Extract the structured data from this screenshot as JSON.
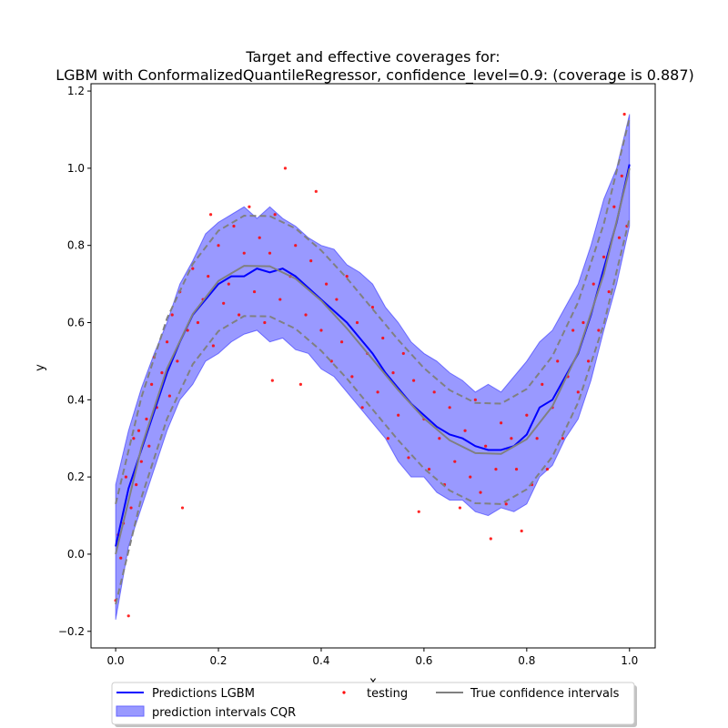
{
  "chart_data": {
    "type": "line",
    "title": "Target and effective coverages for:",
    "subtitle": "LGBM with ConformalizedQuantileRegressor, confidence_level=0.9: (coverage is 0.887)",
    "xlabel": "x",
    "ylabel": "y",
    "xlim": [
      -0.048,
      1.05
    ],
    "ylim": [
      -0.243,
      1.219
    ],
    "xticks": [
      "0.0",
      "0.2",
      "0.4",
      "0.6",
      "0.8",
      "1.0"
    ],
    "yticks": [
      "−0.2",
      "0.0",
      "0.2",
      "0.4",
      "0.6",
      "0.8",
      "1.0",
      "1.2"
    ],
    "grid": false,
    "legend_position": "bottom-center",
    "legend": [
      {
        "label": "Predictions LGBM",
        "kind": "line",
        "color": "#0000ff"
      },
      {
        "label": "prediction intervals CQR",
        "kind": "patch",
        "color": "#9999ff"
      },
      {
        "label": "testing",
        "kind": "marker",
        "color": "#ff0000"
      },
      {
        "label": "True confidence intervals",
        "kind": "line",
        "color": "#808080"
      }
    ],
    "x": [
      0,
      0.025,
      0.05,
      0.075,
      0.1,
      0.125,
      0.15,
      0.175,
      0.2,
      0.225,
      0.25,
      0.275,
      0.3,
      0.325,
      0.35,
      0.375,
      0.4,
      0.425,
      0.45,
      0.475,
      0.5,
      0.525,
      0.55,
      0.575,
      0.6,
      0.625,
      0.65,
      0.675,
      0.7,
      0.725,
      0.75,
      0.775,
      0.8,
      0.825,
      0.85,
      0.875,
      0.9,
      0.925,
      0.95,
      0.975,
      1.0
    ],
    "predictions": [
      0.02,
      0.17,
      0.27,
      0.37,
      0.47,
      0.55,
      0.62,
      0.66,
      0.7,
      0.72,
      0.72,
      0.74,
      0.73,
      0.74,
      0.72,
      0.69,
      0.66,
      0.63,
      0.6,
      0.56,
      0.52,
      0.47,
      0.43,
      0.39,
      0.36,
      0.33,
      0.31,
      0.3,
      0.28,
      0.27,
      0.27,
      0.28,
      0.31,
      0.38,
      0.4,
      0.46,
      0.52,
      0.62,
      0.74,
      0.86,
      1.01
    ],
    "interval_lower": [
      -0.17,
      0.02,
      0.12,
      0.22,
      0.32,
      0.4,
      0.44,
      0.5,
      0.52,
      0.55,
      0.57,
      0.58,
      0.55,
      0.56,
      0.53,
      0.52,
      0.48,
      0.46,
      0.42,
      0.38,
      0.34,
      0.3,
      0.24,
      0.2,
      0.2,
      0.16,
      0.14,
      0.14,
      0.11,
      0.1,
      0.12,
      0.11,
      0.13,
      0.2,
      0.23,
      0.3,
      0.35,
      0.45,
      0.58,
      0.7,
      0.85
    ],
    "interval_upper": [
      0.18,
      0.32,
      0.43,
      0.52,
      0.6,
      0.7,
      0.76,
      0.83,
      0.86,
      0.88,
      0.9,
      0.87,
      0.9,
      0.87,
      0.85,
      0.82,
      0.8,
      0.79,
      0.75,
      0.73,
      0.7,
      0.64,
      0.6,
      0.55,
      0.52,
      0.5,
      0.47,
      0.45,
      0.42,
      0.44,
      0.42,
      0.46,
      0.5,
      0.55,
      0.58,
      0.64,
      0.7,
      0.8,
      0.92,
      1.0,
      1.14
    ],
    "true_x": [
      0,
      0.05,
      0.1,
      0.15,
      0.2,
      0.25,
      0.3,
      0.35,
      0.4,
      0.45,
      0.5,
      0.55,
      0.6,
      0.65,
      0.7,
      0.75,
      0.8,
      0.85,
      0.9,
      0.95,
      1.0
    ],
    "true_mean": [
      0,
      0.276,
      0.481,
      0.622,
      0.708,
      0.747,
      0.746,
      0.714,
      0.657,
      0.585,
      0.505,
      0.425,
      0.352,
      0.295,
      0.262,
      0.26,
      0.298,
      0.383,
      0.523,
      0.726,
      1.0
    ],
    "true_lower": [
      -0.13,
      0.146,
      0.351,
      0.492,
      0.578,
      0.617,
      0.616,
      0.584,
      0.527,
      0.455,
      0.375,
      0.295,
      0.222,
      0.165,
      0.132,
      0.13,
      0.168,
      0.253,
      0.393,
      0.596,
      0.87
    ],
    "true_upper": [
      0.13,
      0.406,
      0.611,
      0.752,
      0.838,
      0.877,
      0.876,
      0.844,
      0.787,
      0.715,
      0.635,
      0.555,
      0.482,
      0.425,
      0.392,
      0.39,
      0.428,
      0.513,
      0.653,
      0.856,
      1.13
    ],
    "testing": [
      [
        0.0,
        -0.12
      ],
      [
        0.005,
        0.05
      ],
      [
        0.01,
        -0.01
      ],
      [
        0.015,
        0.08
      ],
      [
        0.02,
        0.2
      ],
      [
        0.025,
        -0.16
      ],
      [
        0.03,
        0.12
      ],
      [
        0.035,
        0.3
      ],
      [
        0.04,
        0.18
      ],
      [
        0.045,
        0.32
      ],
      [
        0.05,
        0.24
      ],
      [
        0.06,
        0.35
      ],
      [
        0.065,
        0.28
      ],
      [
        0.07,
        0.44
      ],
      [
        0.075,
        0.51
      ],
      [
        0.08,
        0.38
      ],
      [
        0.09,
        0.47
      ],
      [
        0.1,
        0.55
      ],
      [
        0.105,
        0.41
      ],
      [
        0.11,
        0.62
      ],
      [
        0.12,
        0.5
      ],
      [
        0.125,
        0.68
      ],
      [
        0.13,
        0.12
      ],
      [
        0.14,
        0.58
      ],
      [
        0.15,
        0.74
      ],
      [
        0.16,
        0.6
      ],
      [
        0.17,
        0.66
      ],
      [
        0.18,
        0.72
      ],
      [
        0.185,
        0.88
      ],
      [
        0.19,
        0.54
      ],
      [
        0.2,
        0.8
      ],
      [
        0.21,
        0.65
      ],
      [
        0.22,
        0.7
      ],
      [
        0.23,
        0.85
      ],
      [
        0.24,
        0.62
      ],
      [
        0.25,
        0.78
      ],
      [
        0.26,
        0.9
      ],
      [
        0.27,
        0.68
      ],
      [
        0.28,
        0.82
      ],
      [
        0.29,
        0.6
      ],
      [
        0.3,
        0.78
      ],
      [
        0.305,
        0.45
      ],
      [
        0.31,
        0.88
      ],
      [
        0.32,
        0.66
      ],
      [
        0.33,
        1.0
      ],
      [
        0.34,
        0.72
      ],
      [
        0.35,
        0.8
      ],
      [
        0.36,
        0.44
      ],
      [
        0.37,
        0.62
      ],
      [
        0.38,
        0.76
      ],
      [
        0.39,
        0.94
      ],
      [
        0.4,
        0.58
      ],
      [
        0.41,
        0.7
      ],
      [
        0.42,
        0.5
      ],
      [
        0.43,
        0.66
      ],
      [
        0.44,
        0.55
      ],
      [
        0.45,
        0.72
      ],
      [
        0.46,
        0.46
      ],
      [
        0.47,
        0.6
      ],
      [
        0.48,
        0.38
      ],
      [
        0.49,
        0.52
      ],
      [
        0.5,
        0.64
      ],
      [
        0.51,
        0.42
      ],
      [
        0.52,
        0.56
      ],
      [
        0.53,
        0.3
      ],
      [
        0.54,
        0.47
      ],
      [
        0.55,
        0.36
      ],
      [
        0.56,
        0.52
      ],
      [
        0.57,
        0.25
      ],
      [
        0.58,
        0.45
      ],
      [
        0.59,
        0.11
      ],
      [
        0.6,
        0.35
      ],
      [
        0.61,
        0.22
      ],
      [
        0.62,
        0.42
      ],
      [
        0.63,
        0.3
      ],
      [
        0.64,
        0.18
      ],
      [
        0.65,
        0.38
      ],
      [
        0.66,
        0.24
      ],
      [
        0.67,
        0.12
      ],
      [
        0.68,
        0.32
      ],
      [
        0.69,
        0.2
      ],
      [
        0.7,
        0.4
      ],
      [
        0.71,
        0.16
      ],
      [
        0.72,
        0.28
      ],
      [
        0.73,
        0.04
      ],
      [
        0.74,
        0.22
      ],
      [
        0.75,
        0.34
      ],
      [
        0.76,
        0.13
      ],
      [
        0.77,
        0.3
      ],
      [
        0.78,
        0.22
      ],
      [
        0.79,
        0.06
      ],
      [
        0.8,
        0.36
      ],
      [
        0.81,
        0.18
      ],
      [
        0.82,
        0.3
      ],
      [
        0.83,
        0.44
      ],
      [
        0.84,
        0.22
      ],
      [
        0.85,
        0.38
      ],
      [
        0.86,
        0.5
      ],
      [
        0.87,
        0.3
      ],
      [
        0.88,
        0.46
      ],
      [
        0.89,
        0.58
      ],
      [
        0.9,
        0.42
      ],
      [
        0.91,
        0.6
      ],
      [
        0.92,
        0.5
      ],
      [
        0.93,
        0.7
      ],
      [
        0.94,
        0.58
      ],
      [
        0.95,
        0.77
      ],
      [
        0.96,
        0.68
      ],
      [
        0.97,
        0.9
      ],
      [
        0.98,
        0.82
      ],
      [
        0.985,
        0.98
      ],
      [
        0.99,
        1.14
      ],
      [
        0.995,
        0.85
      ]
    ]
  }
}
